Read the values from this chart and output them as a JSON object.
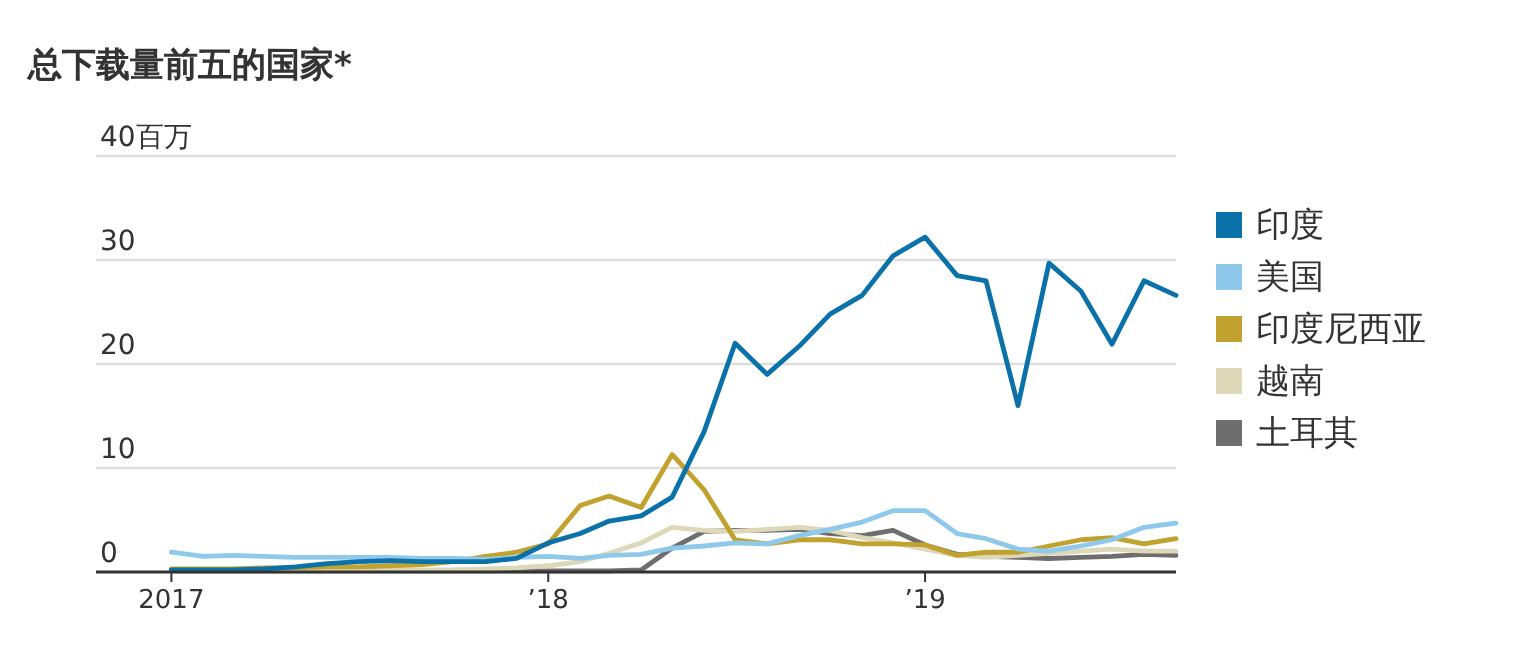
{
  "chart_data": {
    "type": "line",
    "title": "总下载量前五的国家*",
    "x": [
      "2017-01",
      "2017-02",
      "2017-03",
      "2017-04",
      "2017-05",
      "2017-06",
      "2017-07",
      "2017-08",
      "2017-09",
      "2017-10",
      "2017-11",
      "2017-12",
      "2018-01",
      "2018-02",
      "2018-03",
      "2018-04",
      "2018-05",
      "2018-06",
      "2018-07",
      "2018-08",
      "2018-09",
      "2018-10",
      "2018-11",
      "2018-12",
      "2019-01",
      "2019-02",
      "2019-03",
      "2019-04",
      "2019-05",
      "2019-06",
      "2019-07",
      "2019-08",
      "2019-09"
    ],
    "xlim": [
      "2016-10-20",
      "2019-09"
    ],
    "xticks": [
      {
        "value": "2017-01",
        "label": "2017"
      },
      {
        "value": "2018-01",
        "label": "’18"
      },
      {
        "value": "2019-01",
        "label": "’19"
      }
    ],
    "ylim": [
      0,
      40
    ],
    "yticks": [
      0,
      10,
      20,
      30,
      {
        "value": 40,
        "label": "40百万"
      }
    ],
    "grid": "y",
    "legend": "right",
    "line_style": "solid",
    "marker": "none",
    "series": [
      {
        "name": "印度",
        "color": "#0a72a8",
        "values": [
          0.2,
          0.2,
          0.2,
          0.3,
          0.5,
          0.8,
          1.0,
          1.1,
          1.0,
          1.0,
          1.0,
          1.3,
          2.8,
          3.7,
          4.9,
          5.4,
          7.2,
          13.5,
          22,
          19,
          21.7,
          24.8,
          26.6,
          30.4,
          32.2,
          28.5,
          28,
          16,
          29.7,
          27,
          21.9,
          28,
          26.6
        ]
      },
      {
        "name": "美国",
        "color": "#8ec9ec",
        "values": [
          1.9,
          1.5,
          1.6,
          1.5,
          1.4,
          1.4,
          1.4,
          1.4,
          1.3,
          1.3,
          1.2,
          1.4,
          1.5,
          1.3,
          1.6,
          1.7,
          2.3,
          2.5,
          2.8,
          2.7,
          3.5,
          4.1,
          4.8,
          5.9,
          5.9,
          3.7,
          3.2,
          2.2,
          2.0,
          2.5,
          3.1,
          4.3,
          4.7
        ]
      },
      {
        "name": "印度尼西亚",
        "color": "#c2a22e",
        "values": [
          0.3,
          0.3,
          0.3,
          0.4,
          0.4,
          0.5,
          0.5,
          0.6,
          0.7,
          1.0,
          1.5,
          1.9,
          2.7,
          6.4,
          7.3,
          6.2,
          11.3,
          7.9,
          3.1,
          2.7,
          3.1,
          3.1,
          2.7,
          2.7,
          2.6,
          1.6,
          1.9,
          1.9,
          2.5,
          3.1,
          3.3,
          2.7,
          3.2
        ]
      },
      {
        "name": "越南",
        "color": "#dcd8b8",
        "values": [
          0.1,
          0.1,
          0.1,
          0.1,
          0.1,
          0.1,
          0.1,
          0.2,
          0.2,
          0.2,
          0.3,
          0.4,
          0.6,
          1.0,
          1.8,
          2.8,
          4.3,
          4.0,
          3.9,
          4.1,
          4.3,
          4.0,
          3.3,
          2.8,
          2.2,
          1.6,
          1.4,
          1.6,
          1.8,
          2.0,
          2.2,
          2.0,
          2.0
        ]
      },
      {
        "name": "土耳其",
        "color": "#6e6e6e",
        "values": [
          0.1,
          0.1,
          0.1,
          0.1,
          0.1,
          0.1,
          0.1,
          0.1,
          0.1,
          0.1,
          0.1,
          0.1,
          0.1,
          0.1,
          0.1,
          0.2,
          2.3,
          3.9,
          4.0,
          4.0,
          4.1,
          3.7,
          3.5,
          4.0,
          2.6,
          1.7,
          1.5,
          1.4,
          1.3,
          1.4,
          1.5,
          1.7,
          1.6
        ]
      }
    ]
  }
}
